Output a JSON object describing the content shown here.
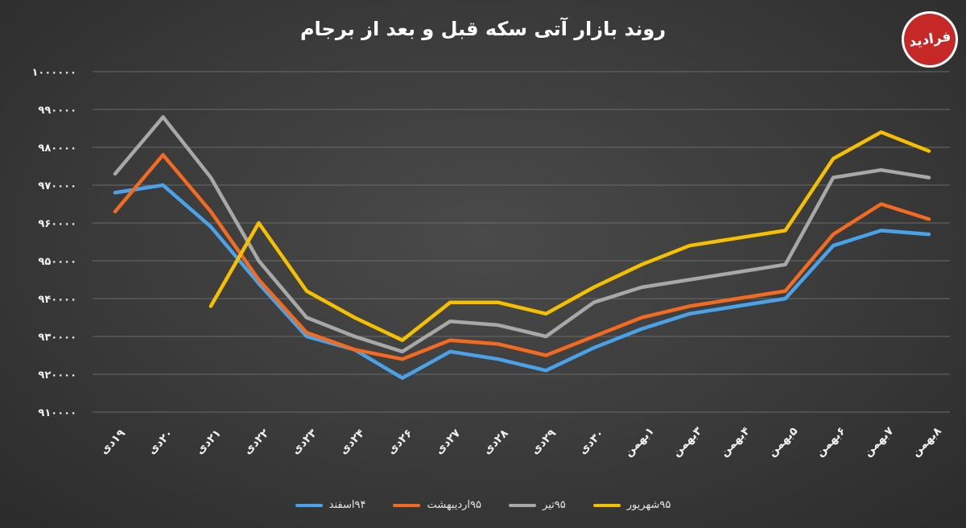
{
  "chart_data": {
    "type": "line",
    "title": "روند بازار آتی سکه قبل و بعد از برجام",
    "categories": [
      "۱۹دی",
      "۲۰دی",
      "۲۱دی",
      "۲۲دی",
      "۲۳دی",
      "۲۴دی",
      "۲۶دی",
      "۲۷دی",
      "۲۸دی",
      "۲۹دی",
      "۳۰دی",
      "۱بهمن",
      "۳بهمن",
      "۴بهمن",
      "۵بهمن",
      "۶بهمن",
      "۷بهمن",
      "۸بهمن"
    ],
    "ylim": [
      910000,
      1000000
    ],
    "yticks": [
      910000,
      920000,
      930000,
      940000,
      950000,
      960000,
      970000,
      980000,
      990000,
      1000000
    ],
    "ytick_labels": [
      "۹۱۰۰۰۰",
      "۹۲۰۰۰۰",
      "۹۳۰۰۰۰",
      "۹۴۰۰۰۰",
      "۹۵۰۰۰۰",
      "۹۶۰۰۰۰",
      "۹۷۰۰۰۰",
      "۹۸۰۰۰۰",
      "۹۹۰۰۰۰",
      "۱۰۰۰۰۰۰"
    ],
    "grid": true,
    "legend_position": "bottom",
    "series": [
      {
        "name": "۹۴اسفند",
        "color": "#4aa3e8",
        "values": [
          968000,
          970000,
          959000,
          944000,
          930000,
          926500,
          919000,
          926000,
          924000,
          921000,
          927000,
          932000,
          936000,
          938000,
          940000,
          954000,
          958000,
          957000
        ]
      },
      {
        "name": "۹۵اردیبهشت",
        "color": "#f26b21",
        "values": [
          963000,
          978000,
          963000,
          945000,
          931000,
          926500,
          924000,
          929000,
          928000,
          925000,
          930000,
          935000,
          938000,
          940000,
          942000,
          957000,
          965000,
          961000
        ]
      },
      {
        "name": "۹۵تیر",
        "color": "#a8a8a8",
        "values": [
          973000,
          988000,
          972000,
          950000,
          935000,
          930000,
          926000,
          934000,
          933000,
          930000,
          939000,
          943000,
          945000,
          947000,
          949000,
          972000,
          974000,
          972000
        ]
      },
      {
        "name": "۹۵شهریور",
        "color": "#f5c000",
        "values": [
          null,
          null,
          938000,
          960000,
          942000,
          935000,
          929000,
          939000,
          939000,
          936000,
          943000,
          949000,
          954000,
          956000,
          958000,
          977000,
          984000,
          979000
        ]
      }
    ]
  },
  "logo": {
    "text": "فرادید"
  }
}
